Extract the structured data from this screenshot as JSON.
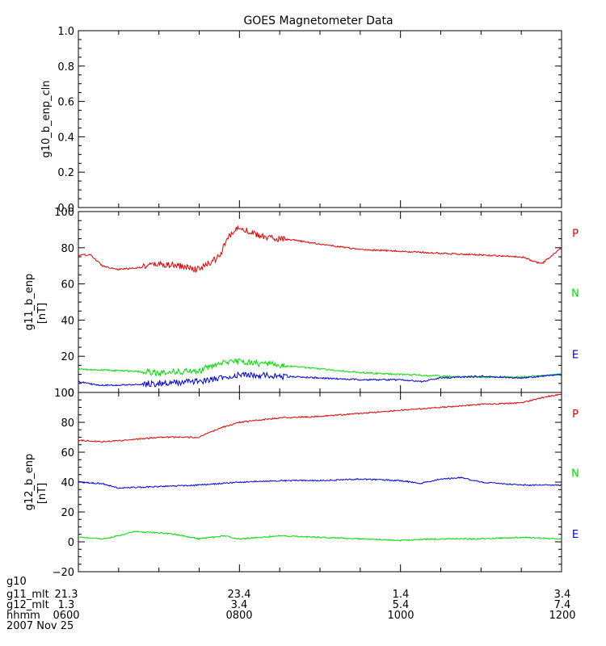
{
  "chart_data": {
    "type": "line",
    "title": "GOES Magnetometer Data",
    "x_range": [
      "0600",
      "1200"
    ],
    "x_tick_labels": [
      "0600",
      "0800",
      "1000",
      "1200"
    ],
    "panels": [
      {
        "id": "g10",
        "ylabel": "g10_b_enp_cln",
        "unit": "",
        "ylim": [
          0,
          1.0
        ],
        "yticks": [
          0.0,
          0.2,
          0.4,
          0.6,
          0.8,
          1.0
        ],
        "ytick_labels": [
          "0.0",
          "0.2",
          "0.4",
          "0.6",
          "0.8",
          "1.0"
        ],
        "series": []
      },
      {
        "id": "g11",
        "ylabel": "g11_b_enp",
        "unit": "[nT]",
        "ylim": [
          0,
          100
        ],
        "yticks": [
          0,
          20,
          40,
          60,
          80,
          100
        ],
        "ytick_labels": [
          "0",
          "20",
          "40",
          "60",
          "80",
          "100"
        ],
        "series": [
          {
            "name": "P",
            "color": "#e00000",
            "t": [
              0.0,
              0.15,
              0.3,
              0.5,
              0.75,
              1.0,
              1.25,
              1.5,
              1.75,
              1.85,
              2.0,
              2.15,
              2.3,
              2.5,
              2.7,
              3.0,
              3.5,
              4.0,
              4.5,
              5.0,
              5.5,
              5.75,
              6.0
            ],
            "v": [
              76,
              76,
              70,
              68,
              69,
              71,
              70,
              68,
              75,
              85,
              92,
              88,
              86,
              85,
              84,
              82,
              79,
              78,
              77,
              76,
              75,
              71,
              80
            ]
          },
          {
            "name": "N",
            "color": "#00dd00",
            "t": [
              0.0,
              0.5,
              1.0,
              1.5,
              1.75,
              2.0,
              2.25,
              2.5,
              3.0,
              3.5,
              4.0,
              4.5,
              5.0,
              5.5,
              6.0
            ],
            "v": [
              13,
              12,
              11,
              12,
              16,
              17,
              16,
              15,
              13,
              11,
              10,
              9,
              8.5,
              8.5,
              10
            ]
          },
          {
            "name": "E",
            "color": "#0000dd",
            "t": [
              0.0,
              0.25,
              0.5,
              1.0,
              1.5,
              1.75,
              2.0,
              2.5,
              3.0,
              3.5,
              4.0,
              4.25,
              4.5,
              5.0,
              5.5,
              6.0
            ],
            "v": [
              6,
              4,
              4,
              5,
              6,
              8,
              10,
              9,
              8,
              7,
              7,
              6,
              8,
              9,
              8,
              10
            ]
          }
        ]
      },
      {
        "id": "g12",
        "ylabel": "g12_b_enp",
        "unit": "[nT]",
        "ylim": [
          -20,
          100
        ],
        "yticks": [
          -20,
          0,
          20,
          40,
          60,
          80,
          100
        ],
        "ytick_labels": [
          "−20",
          "0",
          "20",
          "40",
          "60",
          "80",
          "100"
        ],
        "series": [
          {
            "name": "P",
            "color": "#e00000",
            "t": [
              0.0,
              0.3,
              0.6,
              1.0,
              1.5,
              1.75,
              2.0,
              2.5,
              3.0,
              3.5,
              4.0,
              4.5,
              5.0,
              5.5,
              5.8,
              6.0
            ],
            "v": [
              68,
              67,
              68,
              70,
              70,
              76,
              80,
              83,
              84,
              86,
              88,
              90,
              92,
              93,
              97,
              99
            ]
          },
          {
            "name": "N",
            "color": "#00dd00",
            "t": [
              0.0,
              0.3,
              0.5,
              0.7,
              1.0,
              1.2,
              1.5,
              1.8,
              2.0,
              2.5,
              3.0,
              3.5,
              4.0,
              4.5,
              5.0,
              5.5,
              6.0
            ],
            "v": [
              3,
              2,
              4,
              7,
              6,
              5,
              2,
              4,
              2,
              4,
              3,
              2,
              1,
              2,
              2,
              3,
              2
            ]
          },
          {
            "name": "E",
            "color": "#0000dd",
            "t": [
              0.0,
              0.3,
              0.5,
              1.0,
              1.5,
              2.0,
              2.5,
              3.0,
              3.5,
              4.0,
              4.25,
              4.5,
              4.75,
              5.0,
              5.5,
              6.0
            ],
            "v": [
              40,
              39,
              36,
              37,
              38,
              40,
              41,
              41,
              42,
              41,
              39,
              42,
              43,
              40,
              38,
              38
            ]
          }
        ]
      }
    ],
    "footer": {
      "row_labels": [
        "g10",
        "g11_mlt",
        "g12_mlt",
        "hhmm",
        "2007 Nov 25"
      ],
      "columns": [
        {
          "g11_mlt": "21.3",
          "g12_mlt": "1.3",
          "hhmm": "0600"
        },
        {
          "g11_mlt": "23.4",
          "g12_mlt": "3.4",
          "hhmm": "0800"
        },
        {
          "g11_mlt": "1.4",
          "g12_mlt": "5.4",
          "hhmm": "1000"
        },
        {
          "g11_mlt": "3.4",
          "g12_mlt": "7.4",
          "hhmm": "1200"
        }
      ]
    }
  }
}
